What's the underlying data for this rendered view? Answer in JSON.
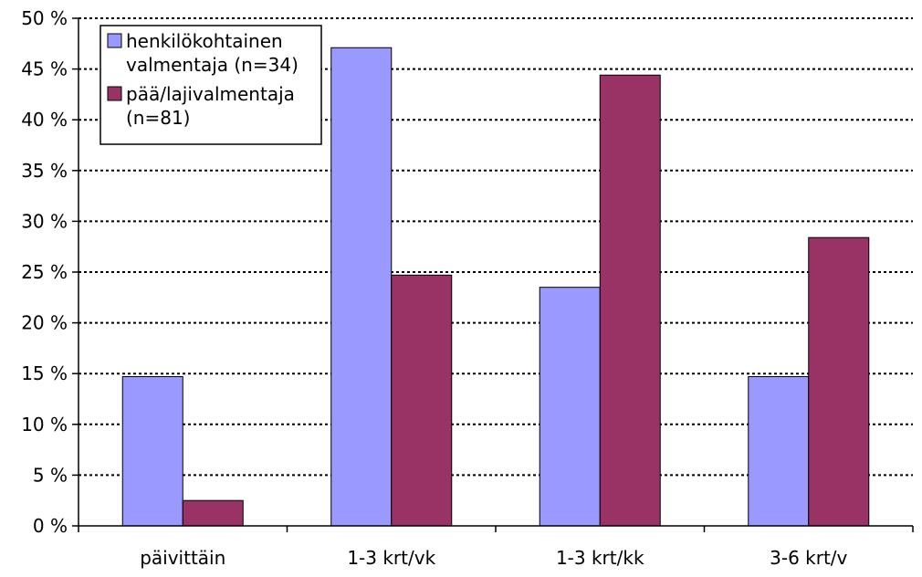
{
  "chart_data": {
    "type": "bar",
    "categories": [
      "päivittäin",
      "1-3 krt/vk",
      "1-3 krt/kk",
      "3-6 krt/v"
    ],
    "series": [
      {
        "name": "henkilökohtainen valmentaja (n=34)",
        "legend_lines": [
          "henkilökohtainen",
          "valmentaja (n=34)"
        ],
        "color": "#9999FF",
        "values": [
          14.7,
          47.1,
          23.5,
          14.7
        ]
      },
      {
        "name": "pää/lajivalmentaja (n=81)",
        "legend_lines": [
          "pää/lajivalmentaja",
          "(n=81)"
        ],
        "color": "#993366",
        "values": [
          2.5,
          24.7,
          44.4,
          28.4
        ]
      }
    ],
    "yticks": [
      "0 %",
      "5 %",
      "10 %",
      "15 %",
      "20 %",
      "25 %",
      "30 %",
      "35 %",
      "40 %",
      "45 %",
      "50 %"
    ],
    "ylim": [
      0,
      50
    ],
    "grid": true,
    "legend_position": "top-left",
    "title": "",
    "xlabel": "",
    "ylabel": ""
  }
}
